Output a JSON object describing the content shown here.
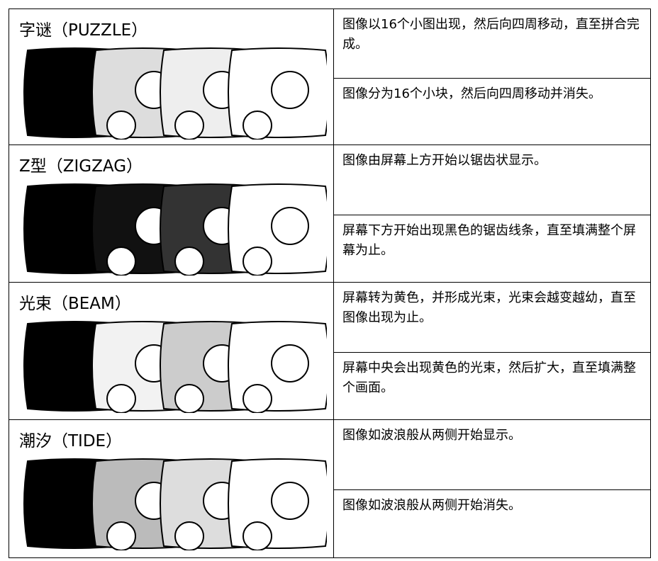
{
  "rows": [
    {
      "title": "字谜（PUZZLE）",
      "descriptions": [
        "图像以16个小图出现，然后向四周移动，直至拼合完成。",
        "图像分为16个小块，然后向四周移动并消失。"
      ]
    },
    {
      "title": "Z型（ZIGZAG）",
      "descriptions": [
        "图像由屏幕上方开始以锯齿状显示。",
        "屏幕下方开始出现黑色的锯齿线条，直至填满整个屏幕为止。"
      ]
    },
    {
      "title": "光束（BEAM）",
      "descriptions": [
        "屏幕转为黄色，并形成光束，光束会越变越幼，直至图像出现为止。",
        "屏幕中央会出现黄色的光束，然后扩大，直至填满整个画面。"
      ]
    },
    {
      "title": "潮汐（TIDE）",
      "descriptions": [
        "图像如波浪般从两侧开始显示。",
        "图像如波浪般从两侧开始消失。"
      ]
    }
  ]
}
